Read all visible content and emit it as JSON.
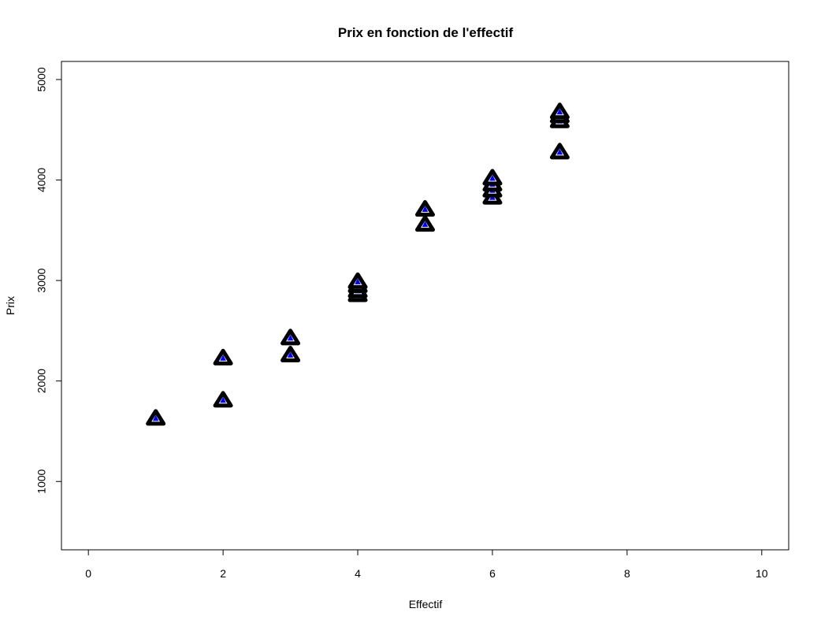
{
  "chart_data": {
    "type": "scatter",
    "title": "Prix en fonction de l'effectif",
    "xlabel": "Effectif",
    "ylabel": "Prix",
    "xlim": [
      -0.4,
      10.4
    ],
    "ylim": [
      320,
      5180
    ],
    "xticks": [
      0,
      2,
      4,
      6,
      8,
      10
    ],
    "yticks": [
      1000,
      2000,
      3000,
      4000,
      5000
    ],
    "grid": false,
    "marker": "triangle",
    "marker_stroke": "#000000",
    "marker_fill": "#0000ff",
    "points": [
      {
        "x": 1,
        "y": 1630
      },
      {
        "x": 2,
        "y": 1810
      },
      {
        "x": 2,
        "y": 2230
      },
      {
        "x": 3,
        "y": 2260
      },
      {
        "x": 3,
        "y": 2430
      },
      {
        "x": 4,
        "y": 2860
      },
      {
        "x": 4,
        "y": 2900
      },
      {
        "x": 4,
        "y": 2950
      },
      {
        "x": 4,
        "y": 2990
      },
      {
        "x": 5,
        "y": 3560
      },
      {
        "x": 5,
        "y": 3710
      },
      {
        "x": 6,
        "y": 3830
      },
      {
        "x": 6,
        "y": 3900
      },
      {
        "x": 6,
        "y": 3960
      },
      {
        "x": 6,
        "y": 4020
      },
      {
        "x": 7,
        "y": 4280
      },
      {
        "x": 7,
        "y": 4590
      },
      {
        "x": 7,
        "y": 4640
      },
      {
        "x": 7,
        "y": 4680
      }
    ]
  }
}
